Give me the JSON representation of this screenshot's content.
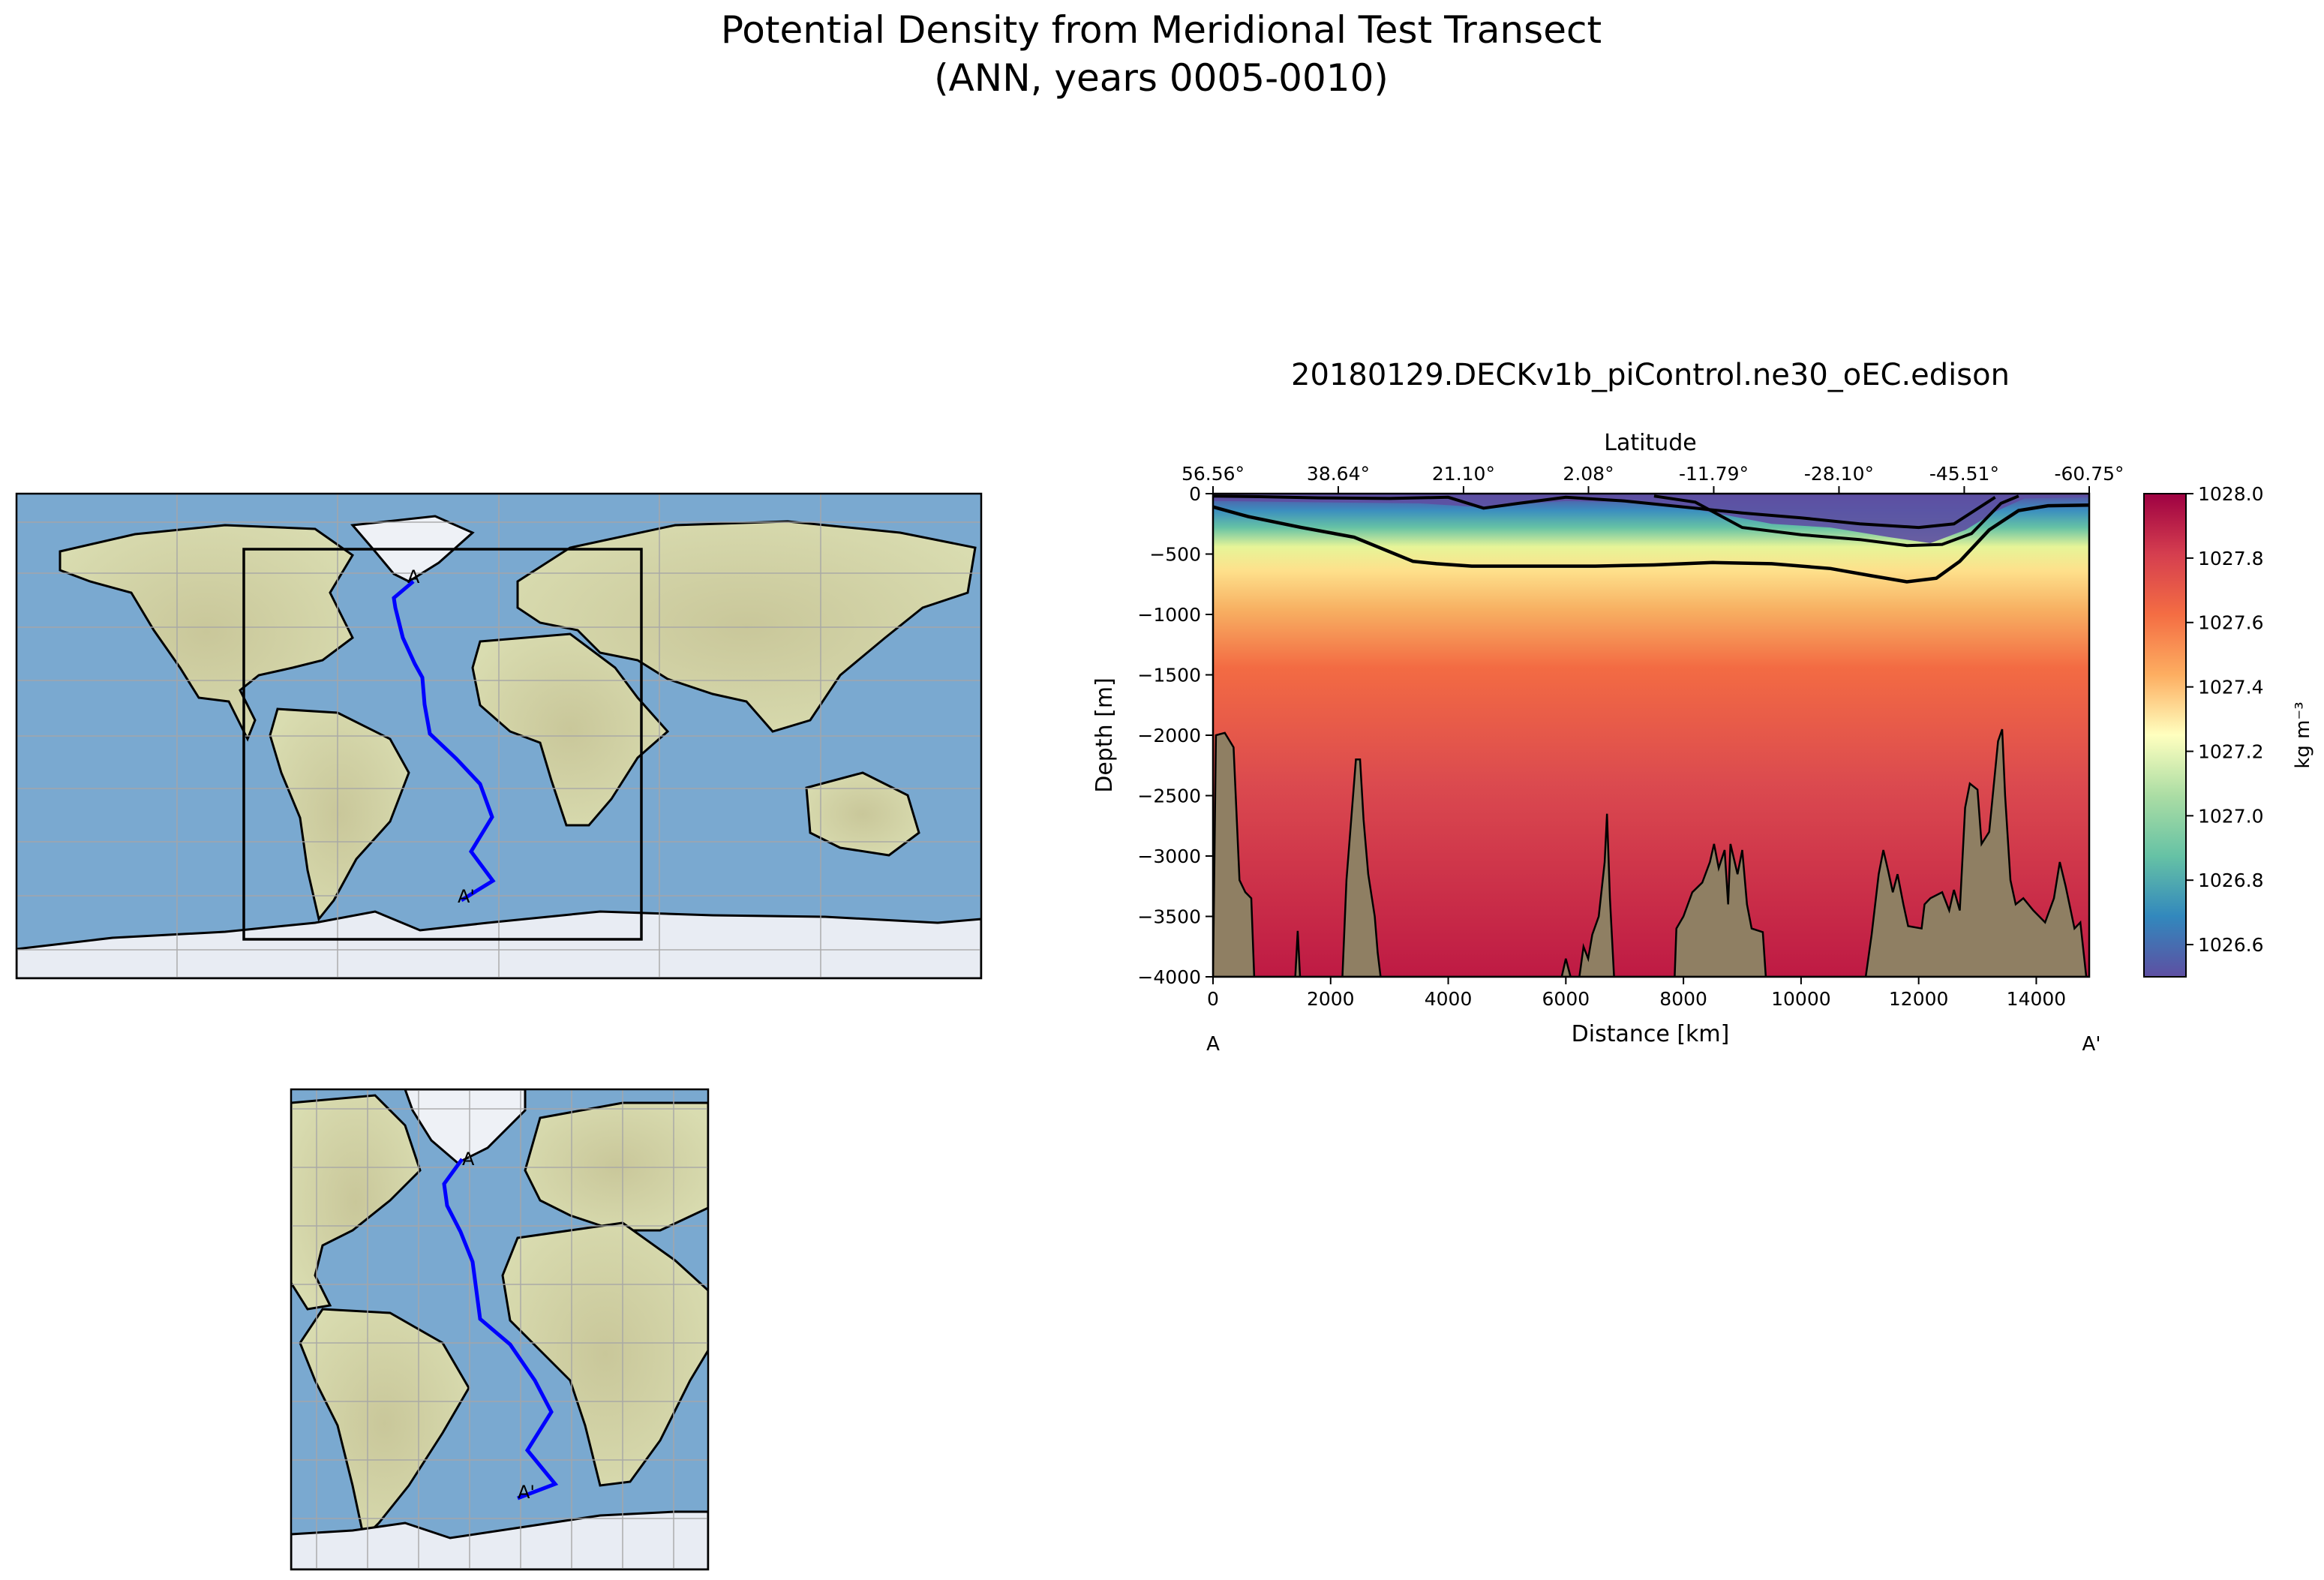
{
  "figure": {
    "title_line1": "Potential Density from Meridional Test Transect",
    "title_line2": "(ANN, years 0005-0010)"
  },
  "maps": {
    "start_label": "A",
    "end_label": "A'"
  },
  "colors": {
    "transect": "#0000ff",
    "ocean": "#7aa9d0",
    "land": "#cfd6a6",
    "ice": "#e8ecf3",
    "bathymetry": "#8f7f63",
    "grid": "#a6a6a6"
  },
  "chart_data": {
    "type": "heatmap",
    "title": "20180129.DECKv1b_piControl.ne30_oEC.edison",
    "xlabel": "Distance [km]",
    "ylabel": "Depth [m]",
    "top_axis_label": "Latitude",
    "xlim": [
      0,
      14900
    ],
    "ylim": [
      -4000,
      0
    ],
    "x_ticks": [
      0,
      2000,
      4000,
      6000,
      8000,
      10000,
      12000,
      14000
    ],
    "y_ticks": [
      0,
      -500,
      -1000,
      -1500,
      -2000,
      -2500,
      -3000,
      -3500,
      -4000
    ],
    "top_ticks": [
      {
        "x": 0,
        "label": "56.56°"
      },
      {
        "x": 2130,
        "label": "38.64°"
      },
      {
        "x": 4260,
        "label": "21.10°"
      },
      {
        "x": 6385,
        "label": "2.08°"
      },
      {
        "x": 8515,
        "label": "-11.79°"
      },
      {
        "x": 10645,
        "label": "-28.10°"
      },
      {
        "x": 12775,
        "label": "-45.51°"
      },
      {
        "x": 14900,
        "label": "-60.75°"
      }
    ],
    "start_label": "A",
    "end_label": "A'",
    "colorbar": {
      "label": "kg m⁻³",
      "min": 1026.5,
      "max": 1028.0,
      "ticks": [
        1026.6,
        1026.8,
        1027.0,
        1027.2,
        1027.4,
        1027.6,
        1027.8,
        1028.0
      ],
      "colormap": "Spectral_r"
    },
    "contour_1027_4": [
      [
        0,
        -110
      ],
      [
        600,
        -190
      ],
      [
        1500,
        -280
      ],
      [
        2400,
        -360
      ],
      [
        3400,
        -560
      ],
      [
        3800,
        -580
      ],
      [
        4400,
        -600
      ],
      [
        5500,
        -600
      ],
      [
        6500,
        -600
      ],
      [
        7500,
        -590
      ],
      [
        8500,
        -570
      ],
      [
        9500,
        -580
      ],
      [
        10500,
        -620
      ],
      [
        11200,
        -680
      ],
      [
        11800,
        -730
      ],
      [
        12300,
        -700
      ],
      [
        12700,
        -560
      ],
      [
        13200,
        -300
      ],
      [
        13700,
        -140
      ],
      [
        14200,
        -100
      ],
      [
        14900,
        -95
      ]
    ],
    "seafloor": [
      [
        0,
        -4000
      ],
      [
        50,
        -2000
      ],
      [
        200,
        -1980
      ],
      [
        350,
        -2100
      ],
      [
        450,
        -3200
      ],
      [
        550,
        -3300
      ],
      [
        650,
        -3350
      ],
      [
        700,
        -4000
      ],
      [
        1400,
        -4000
      ],
      [
        1440,
        -3620
      ],
      [
        1480,
        -4000
      ],
      [
        2200,
        -4000
      ],
      [
        2270,
        -3200
      ],
      [
        2350,
        -2700
      ],
      [
        2430,
        -2200
      ],
      [
        2500,
        -2200
      ],
      [
        2560,
        -2700
      ],
      [
        2640,
        -3150
      ],
      [
        2750,
        -3500
      ],
      [
        2800,
        -3800
      ],
      [
        2850,
        -4000
      ],
      [
        5930,
        -4000
      ],
      [
        6000,
        -3850
      ],
      [
        6080,
        -4000
      ],
      [
        6230,
        -4000
      ],
      [
        6300,
        -3750
      ],
      [
        6380,
        -3850
      ],
      [
        6450,
        -3650
      ],
      [
        6560,
        -3500
      ],
      [
        6660,
        -3050
      ],
      [
        6700,
        -2650
      ],
      [
        6750,
        -3350
      ],
      [
        6820,
        -4000
      ],
      [
        7850,
        -4000
      ],
      [
        7880,
        -3600
      ],
      [
        8000,
        -3500
      ],
      [
        8150,
        -3300
      ],
      [
        8320,
        -3220
      ],
      [
        8450,
        -3050
      ],
      [
        8520,
        -2900
      ],
      [
        8600,
        -3100
      ],
      [
        8700,
        -2950
      ],
      [
        8760,
        -3400
      ],
      [
        8800,
        -2900
      ],
      [
        8920,
        -3150
      ],
      [
        9000,
        -2950
      ],
      [
        9080,
        -3400
      ],
      [
        9160,
        -3600
      ],
      [
        9350,
        -3630
      ],
      [
        9400,
        -4000
      ],
      [
        11100,
        -4000
      ],
      [
        11200,
        -3650
      ],
      [
        11320,
        -3150
      ],
      [
        11400,
        -2950
      ],
      [
        11480,
        -3120
      ],
      [
        11560,
        -3300
      ],
      [
        11640,
        -3150
      ],
      [
        11740,
        -3400
      ],
      [
        11820,
        -3580
      ],
      [
        12050,
        -3600
      ],
      [
        12100,
        -3400
      ],
      [
        12200,
        -3350
      ],
      [
        12400,
        -3300
      ],
      [
        12520,
        -3450
      ],
      [
        12600,
        -3280
      ],
      [
        12700,
        -3450
      ],
      [
        12790,
        -2600
      ],
      [
        12870,
        -2400
      ],
      [
        13000,
        -2450
      ],
      [
        13070,
        -2900
      ],
      [
        13200,
        -2800
      ],
      [
        13350,
        -2050
      ],
      [
        13420,
        -1950
      ],
      [
        13470,
        -2500
      ],
      [
        13560,
        -3200
      ],
      [
        13650,
        -3400
      ],
      [
        13780,
        -3350
      ],
      [
        13950,
        -3450
      ],
      [
        14150,
        -3550
      ],
      [
        14300,
        -3350
      ],
      [
        14400,
        -3050
      ],
      [
        14500,
        -3250
      ],
      [
        14650,
        -3600
      ],
      [
        14750,
        -3550
      ],
      [
        14850,
        -4000
      ],
      [
        14900,
        -4000
      ]
    ]
  }
}
